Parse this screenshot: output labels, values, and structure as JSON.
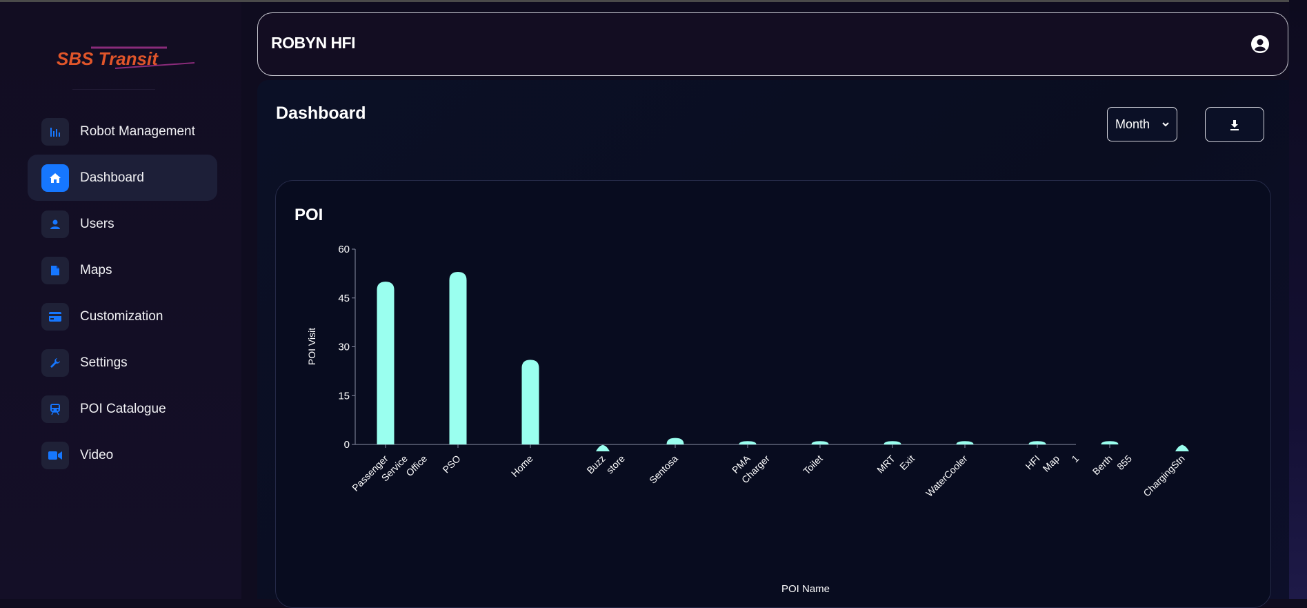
{
  "sidebar": {
    "logo_text": "SBS Transit",
    "items": [
      {
        "label": "Robot Management",
        "icon": "bar-chart-icon",
        "active": false
      },
      {
        "label": "Dashboard",
        "icon": "home-icon",
        "active": true
      },
      {
        "label": "Users",
        "icon": "user-icon",
        "active": false
      },
      {
        "label": "Maps",
        "icon": "document-icon",
        "active": false
      },
      {
        "label": "Customization",
        "icon": "credit-card-icon",
        "active": false
      },
      {
        "label": "Settings",
        "icon": "wrench-icon",
        "active": false
      },
      {
        "label": "POI Catalogue",
        "icon": "train-icon",
        "active": false
      },
      {
        "label": "Video",
        "icon": "video-camera-icon",
        "active": false
      }
    ]
  },
  "header": {
    "title": "ROBYN HFI",
    "user_icon": "account-circle-icon"
  },
  "main": {
    "page_title": "Dashboard",
    "period_select": {
      "value": "Month"
    },
    "download_icon": "download-icon"
  },
  "colors": {
    "accent": "#1677ff",
    "bar": "#9affef",
    "background": "#0f0c1f"
  },
  "chart_data": {
    "type": "bar",
    "title": "POI",
    "xlabel": "POI Name",
    "ylabel": "POI Visit",
    "ylim": [
      0,
      60
    ],
    "yticks": [
      0,
      15,
      30,
      45,
      60
    ],
    "categories": [
      [
        "Passenger",
        "Service",
        "Office"
      ],
      [
        "PSO"
      ],
      [
        "Home"
      ],
      [
        "Buzz",
        "store"
      ],
      [
        "Sentosa"
      ],
      [
        "PMA",
        "Charger"
      ],
      [
        "Toilet"
      ],
      [
        "MRT",
        "Exit"
      ],
      [
        "WaterCooler"
      ],
      [
        "HFI",
        "Map",
        "1"
      ],
      [
        "Berth",
        "855"
      ],
      [
        "ChargingStn"
      ]
    ],
    "values": [
      50,
      53,
      26,
      0,
      2,
      1,
      1,
      1,
      1,
      1,
      1,
      0
    ],
    "grid": false
  }
}
